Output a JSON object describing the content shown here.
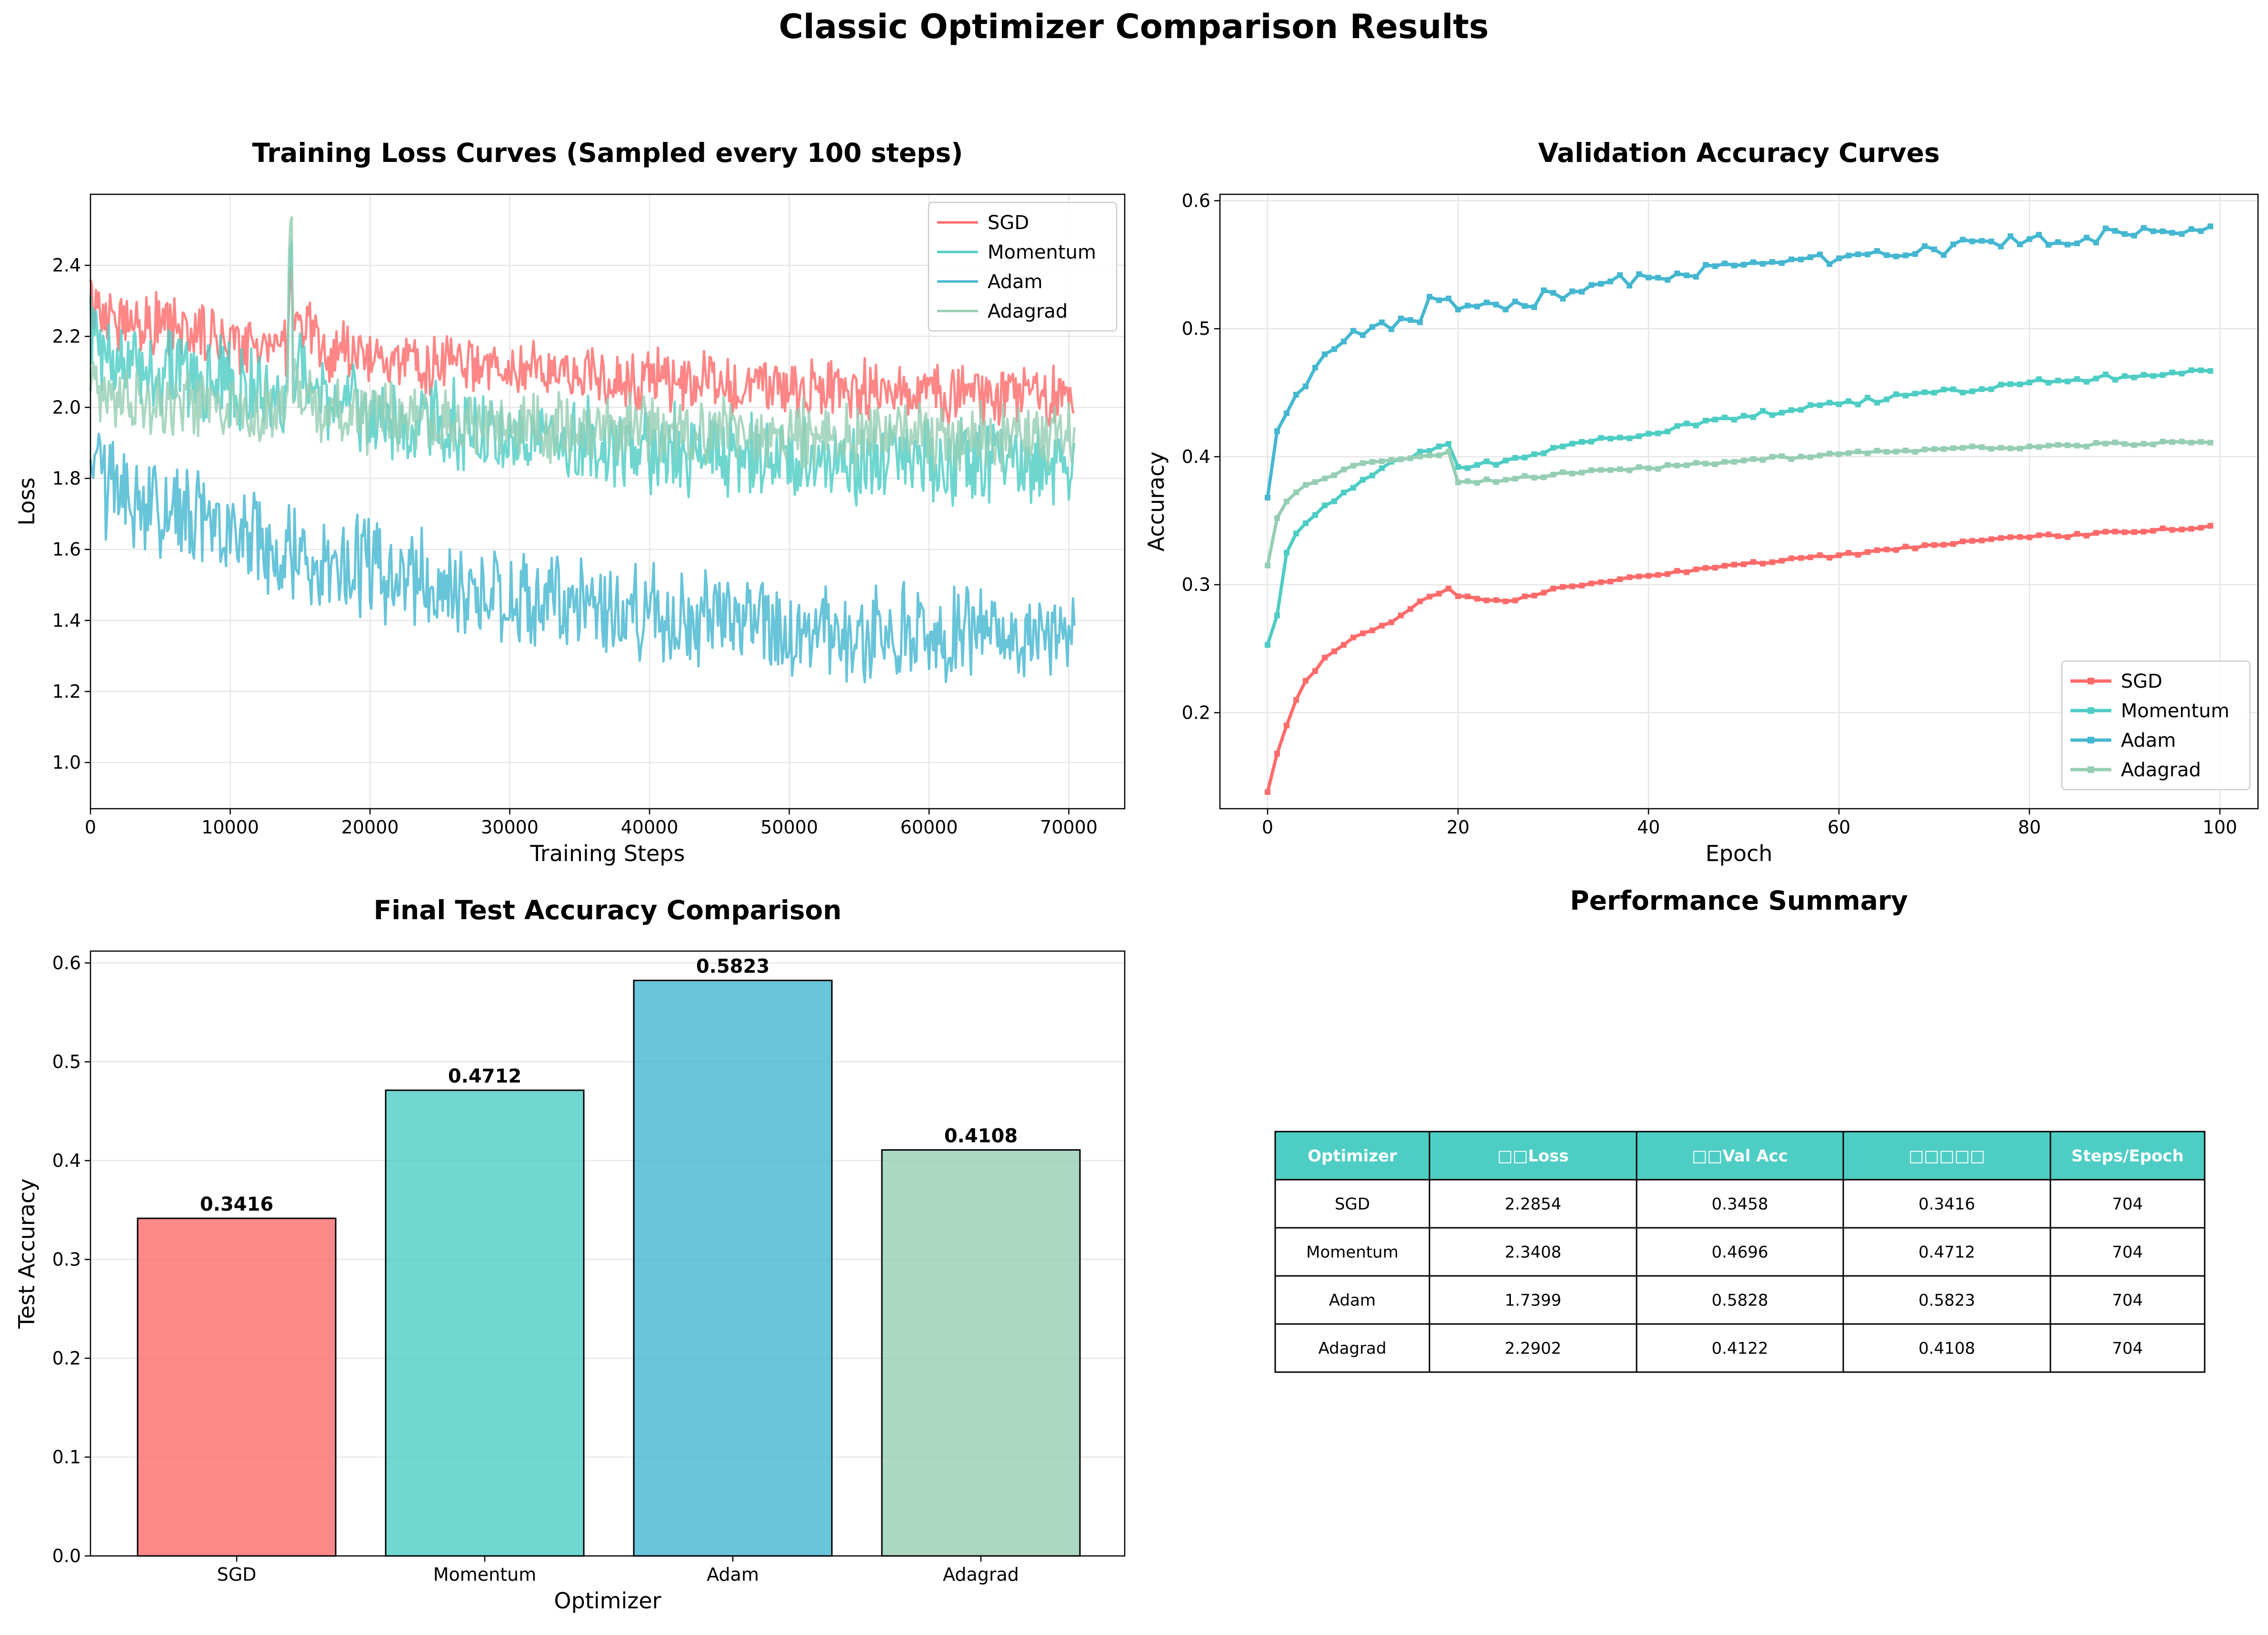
{
  "figure": {
    "title": "Classic Optimizer Comparison Results"
  },
  "colors": {
    "SGD": "#FF6B6B",
    "Momentum": "#4ECDC4",
    "Adam": "#45B7D1",
    "Adagrad": "#96CEB4",
    "table_header": "#4ECDC4"
  },
  "chart_data": [
    {
      "id": "training-loss",
      "type": "line",
      "title": "Training Loss Curves (Sampled every 100 steps)",
      "xlabel": "Training Steps",
      "ylabel": "Loss",
      "xlim": [
        0,
        74000
      ],
      "ylim": [
        0.87,
        2.6
      ],
      "xticks": [
        0,
        10000,
        20000,
        30000,
        40000,
        50000,
        60000,
        70000
      ],
      "yticks": [
        1.0,
        1.2,
        1.4,
        1.6,
        1.8,
        2.0,
        2.2,
        2.4
      ],
      "grid": true,
      "legend": "top-right",
      "x": {
        "start": 0,
        "step": 100,
        "count": 705
      },
      "series": [
        {
          "name": "SGD",
          "color": "#FF6B6B",
          "start": 2.3,
          "end": 2.0,
          "noise": 0.07,
          "spike": {
            "at": 14300,
            "value": 2.38
          }
        },
        {
          "name": "Momentum",
          "color": "#4ECDC4",
          "start": 2.22,
          "end": 1.78,
          "noise": 0.1,
          "spike": {
            "at": 14300,
            "value": 2.45
          }
        },
        {
          "name": "Adam",
          "color": "#45B7D1",
          "start": 1.85,
          "end": 1.28,
          "noise": 0.11,
          "spike": null
        },
        {
          "name": "Adagrad",
          "color": "#96CEB4",
          "start": 2.05,
          "end": 1.9,
          "noise": 0.08,
          "spike": {
            "at": 14300,
            "value": 2.52
          }
        }
      ]
    },
    {
      "id": "validation-accuracy",
      "type": "line",
      "title": "Validation Accuracy Curves",
      "xlabel": "Epoch",
      "ylabel": "Accuracy",
      "xlim": [
        -5,
        104
      ],
      "ylim": [
        0.125,
        0.605
      ],
      "xticks": [
        0,
        20,
        40,
        60,
        80,
        100
      ],
      "yticks": [
        0.2,
        0.3,
        0.4,
        0.5,
        0.6
      ],
      "grid": true,
      "legend": "bottom-right",
      "x": {
        "start": 0,
        "step": 1,
        "count": 100
      },
      "series": [
        {
          "name": "SGD",
          "color": "#FF6B6B",
          "points": [
            [
              0,
              0.138
            ],
            [
              1,
              0.168
            ],
            [
              2,
              0.19
            ],
            [
              3,
              0.21
            ],
            [
              4,
              0.225
            ],
            [
              6,
              0.243
            ],
            [
              8,
              0.253
            ],
            [
              10,
              0.262
            ],
            [
              12,
              0.268
            ],
            [
              14,
              0.276
            ],
            [
              16,
              0.287
            ],
            [
              18,
              0.293
            ],
            [
              19,
              0.297
            ],
            [
              20,
              0.291
            ],
            [
              25,
              0.287
            ],
            [
              30,
              0.297
            ],
            [
              40,
              0.307
            ],
            [
              50,
              0.316
            ],
            [
              60,
              0.323
            ],
            [
              70,
              0.331
            ],
            [
              80,
              0.337
            ],
            [
              90,
              0.341
            ],
            [
              99,
              0.346
            ]
          ]
        },
        {
          "name": "Momentum",
          "color": "#4ECDC4",
          "points": [
            [
              0,
              0.253
            ],
            [
              1,
              0.276
            ],
            [
              2,
              0.325
            ],
            [
              3,
              0.34
            ],
            [
              4,
              0.348
            ],
            [
              6,
              0.362
            ],
            [
              8,
              0.372
            ],
            [
              10,
              0.382
            ],
            [
              12,
              0.391
            ],
            [
              14,
              0.398
            ],
            [
              16,
              0.404
            ],
            [
              18,
              0.408
            ],
            [
              19,
              0.41
            ],
            [
              20,
              0.392
            ],
            [
              25,
              0.397
            ],
            [
              30,
              0.407
            ],
            [
              40,
              0.418
            ],
            [
              50,
              0.432
            ],
            [
              60,
              0.441
            ],
            [
              70,
              0.45
            ],
            [
              80,
              0.458
            ],
            [
              90,
              0.463
            ],
            [
              99,
              0.467
            ]
          ]
        },
        {
          "name": "Adam",
          "color": "#45B7D1",
          "points": [
            [
              0,
              0.368
            ],
            [
              1,
              0.42
            ],
            [
              2,
              0.434
            ],
            [
              4,
              0.455
            ],
            [
              6,
              0.48
            ],
            [
              8,
              0.49
            ],
            [
              10,
              0.495
            ],
            [
              14,
              0.508
            ],
            [
              16,
              0.505
            ],
            [
              17,
              0.525
            ],
            [
              20,
              0.515
            ],
            [
              25,
              0.515
            ],
            [
              30,
              0.528
            ],
            [
              40,
              0.54
            ],
            [
              50,
              0.55
            ],
            [
              60,
              0.555
            ],
            [
              70,
              0.562
            ],
            [
              80,
              0.57
            ],
            [
              90,
              0.574
            ],
            [
              99,
              0.58
            ]
          ]
        },
        {
          "name": "Adagrad",
          "color": "#96CEB4",
          "points": [
            [
              0,
              0.315
            ],
            [
              1,
              0.352
            ],
            [
              2,
              0.365
            ],
            [
              4,
              0.378
            ],
            [
              6,
              0.383
            ],
            [
              8,
              0.39
            ],
            [
              10,
              0.395
            ],
            [
              14,
              0.398
            ],
            [
              18,
              0.401
            ],
            [
              19,
              0.404
            ],
            [
              20,
              0.38
            ],
            [
              25,
              0.382
            ],
            [
              30,
              0.386
            ],
            [
              40,
              0.391
            ],
            [
              50,
              0.397
            ],
            [
              60,
              0.402
            ],
            [
              70,
              0.406
            ],
            [
              80,
              0.408
            ],
            [
              90,
              0.41
            ],
            [
              99,
              0.411
            ]
          ]
        }
      ],
      "noise": [
        0.0015,
        0.0025,
        0.006,
        0.0015
      ]
    },
    {
      "id": "final-test-accuracy",
      "type": "bar",
      "title": "Final Test Accuracy Comparison",
      "xlabel": "Optimizer",
      "ylabel": "Test Accuracy",
      "ylim": [
        0,
        0.612
      ],
      "yticks": [
        0.0,
        0.1,
        0.2,
        0.3,
        0.4,
        0.5,
        0.6
      ],
      "grid": true,
      "categories": [
        "SGD",
        "Momentum",
        "Adam",
        "Adagrad"
      ],
      "values": [
        0.3416,
        0.4712,
        0.5823,
        0.4108
      ],
      "labels": [
        "0.3416",
        "0.4712",
        "0.5823",
        "0.4108"
      ],
      "colors": [
        "#FF6B6B",
        "#4ECDC4",
        "#45B7D1",
        "#96CEB4"
      ]
    },
    {
      "id": "performance-summary",
      "type": "table",
      "title": "Performance Summary",
      "headers": [
        "Optimizer",
        "□□Loss",
        "□□Val Acc",
        "□□□□□",
        "Steps/Epoch"
      ],
      "rows": [
        [
          "SGD",
          "2.2854",
          "0.3458",
          "0.3416",
          "704"
        ],
        [
          "Momentum",
          "2.3408",
          "0.4696",
          "0.4712",
          "704"
        ],
        [
          "Adam",
          "1.7399",
          "0.5828",
          "0.5823",
          "704"
        ],
        [
          "Adagrad",
          "2.2902",
          "0.4122",
          "0.4108",
          "704"
        ]
      ]
    }
  ]
}
